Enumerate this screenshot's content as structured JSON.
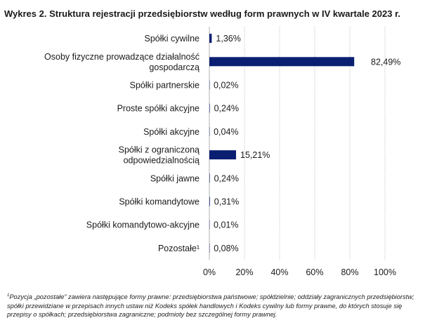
{
  "title": "Wykres 2. Struktura rejestracji przedsiębiorstw według form prawnych w IV kwartale 2023 r.",
  "chart_data": {
    "type": "bar",
    "orientation": "horizontal",
    "title": "Wykres 2. Struktura rejestracji przedsiębiorstw według form prawnych w IV kwartale 2023 r.",
    "categories": [
      [
        "Spółki cywilne"
      ],
      [
        "Osoby fizyczne prowadzące działalność",
        "gospodarczą"
      ],
      [
        "Spółki partnerskie"
      ],
      [
        "Proste spółki akcyjne"
      ],
      [
        "Spółki akcyjne"
      ],
      [
        "Spółki z ograniczoną",
        "odpowiedzialnością"
      ],
      [
        "Spółki jawne"
      ],
      [
        "Spółki komandytowe"
      ],
      [
        "Spółki komandytowo-akcyjne"
      ],
      [
        "Pozostałe¹"
      ]
    ],
    "values": [
      1.36,
      82.49,
      0.02,
      0.24,
      0.04,
      15.21,
      0.24,
      0.31,
      0.01,
      0.08
    ],
    "value_labels": [
      "1,36%",
      "82,49%",
      "0,02%",
      "0,24%",
      "0,04%",
      "15,21%",
      "0,24%",
      "0,31%",
      "0,01%",
      "0,08%"
    ],
    "xlim": [
      0,
      100
    ],
    "xticks": [
      0,
      20,
      40,
      60,
      80,
      100
    ],
    "xtick_labels": [
      "0%",
      "20%",
      "40%",
      "60%",
      "80%",
      "100%"
    ],
    "grid": true,
    "bar_color": "#0b1f72",
    "xlabel": "",
    "ylabel": ""
  },
  "footnote": {
    "mark": "1",
    "text": "Pozycja „pozostałe” zawiera następujące formy prawne: przedsiębiorstwa państwowe; spółdzielnie; oddziały zagranicznych przedsiębiorstw; spółki przewidziane w przepisach innych ustaw niż Kodeks spółek handlowych i Kodeks cywilny lub formy prawne, do których stosuje się przepisy o spółkach; przedsiębiorstwa zagraniczne; podmioty bez szczególnej formy prawnej."
  }
}
